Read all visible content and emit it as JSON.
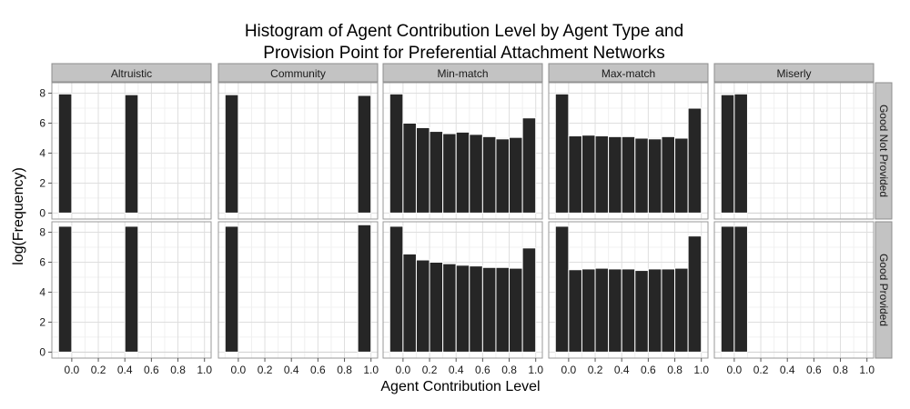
{
  "chart_data": {
    "type": "bar",
    "title_lines": [
      "Histogram of Agent Contribution Level by Agent Type and",
      "Provision Point for Preferential Attachment Networks"
    ],
    "xlabel": "Agent Contribution Level",
    "ylabel": "log(Frequency)",
    "xlim": [
      -0.15,
      1.05
    ],
    "ylim": [
      -0.4,
      8.7
    ],
    "x_ticks": [
      0.0,
      0.2,
      0.4,
      0.6,
      0.8,
      1.0
    ],
    "x_tick_labels": [
      "0.0",
      "0.2",
      "0.4",
      "0.6",
      "0.8",
      "1.0"
    ],
    "y_ticks": [
      0,
      2,
      4,
      6,
      8
    ],
    "y_tick_labels": [
      "0",
      "2",
      "4",
      "6",
      "8"
    ],
    "bin_width": 0.1,
    "bin_centers": [
      -0.05,
      0.05,
      0.15,
      0.25,
      0.35,
      0.45,
      0.55,
      0.65,
      0.75,
      0.85,
      0.95
    ],
    "columns": [
      "Altruistic",
      "Community",
      "Min-match",
      "Max-match",
      "Miserly"
    ],
    "rows": [
      "Good Not Provided",
      "Good Provided"
    ],
    "colors": {
      "bar_fill": "#262626",
      "bar_outline": "#ffffff",
      "panel_bg": "#ffffff",
      "panel_border": "#999999",
      "grid_major": "#dedede",
      "grid_minor": "#f0f0f0",
      "strip_bg": "#c3c3c3",
      "strip_border": "#8c8c8c"
    },
    "panels": [
      [
        [
          7.95,
          0,
          0,
          0,
          0,
          7.9,
          0,
          0,
          0,
          0,
          0
        ],
        [
          7.9,
          0,
          0,
          0,
          0,
          0,
          0,
          0,
          0,
          0,
          7.85
        ],
        [
          7.95,
          6.0,
          5.7,
          5.45,
          5.3,
          5.4,
          5.25,
          5.1,
          4.95,
          5.05,
          6.35
        ],
        [
          7.95,
          5.15,
          5.2,
          5.15,
          5.1,
          5.1,
          5.0,
          4.95,
          5.1,
          5.0,
          7.0
        ],
        [
          7.9,
          7.95,
          0,
          0,
          0,
          0,
          0,
          0,
          0,
          0,
          0
        ]
      ],
      [
        [
          8.4,
          0,
          0,
          0,
          0,
          8.4,
          0,
          0,
          0,
          0,
          0
        ],
        [
          8.4,
          0,
          0,
          0,
          0,
          0,
          0,
          0,
          0,
          0,
          8.5
        ],
        [
          8.4,
          6.55,
          6.15,
          6.0,
          5.9,
          5.8,
          5.75,
          5.65,
          5.65,
          5.6,
          6.95
        ],
        [
          8.4,
          5.5,
          5.55,
          5.6,
          5.55,
          5.55,
          5.45,
          5.55,
          5.55,
          5.6,
          7.75
        ],
        [
          8.4,
          8.4,
          0,
          0,
          0,
          0,
          0,
          0,
          0,
          0,
          0
        ]
      ]
    ]
  }
}
